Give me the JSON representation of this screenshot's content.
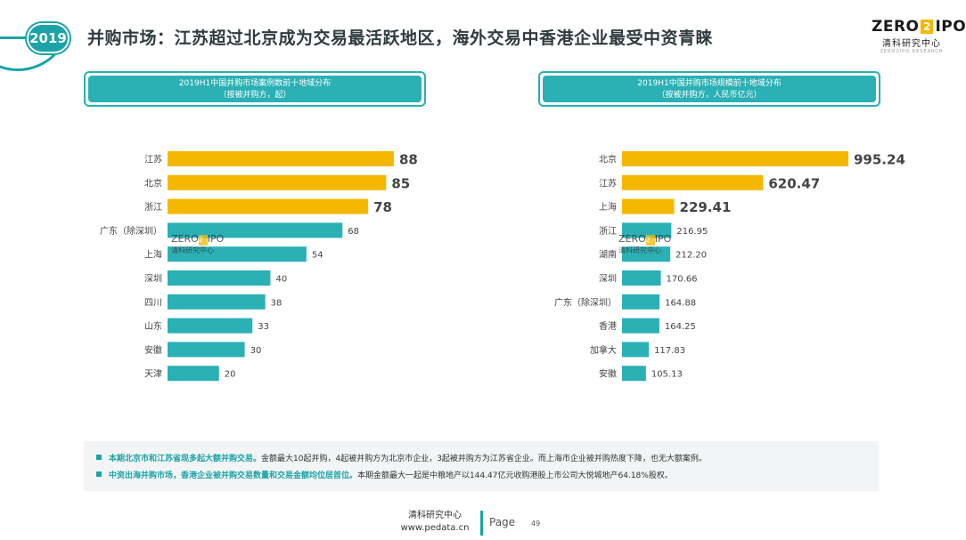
{
  "header": {
    "year": "2019",
    "title": "并购市场：江苏超过北京成为交易最活跃地区，海外交易中香港企业最受中资青睐"
  },
  "logo": {
    "main_left": "ZERO",
    "mark": "2",
    "main_right": "IPO",
    "sub": "清科研究中心",
    "tiny": "ZERO2IPO RESEARCH"
  },
  "watermark": {
    "main_left": "ZERO",
    "mark": "2",
    "main_right": "IPO",
    "sub": "清科研究中心"
  },
  "panels": {
    "left": {
      "title": "2019H1中国并购市场案例数前十地域分布",
      "subtitle": "（按被并购方，起）"
    },
    "right": {
      "title": "2019H1中国并购市场规模前十地域分布",
      "subtitle": "（按被并购方，人民币亿元）"
    }
  },
  "chart_data": [
    {
      "type": "bar",
      "orientation": "horizontal",
      "title": "2019H1中国并购市场案例数前十地域分布",
      "subtitle": "（按被并购方，起）",
      "categories": [
        "江苏",
        "北京",
        "浙江",
        "广东（除深圳）",
        "上海",
        "深圳",
        "四川",
        "山东",
        "安徽",
        "天津"
      ],
      "values": [
        88,
        85,
        78,
        68,
        54,
        40,
        38,
        33,
        30,
        20
      ],
      "value_labels": [
        "88",
        "85",
        "78",
        "68",
        "54",
        "40",
        "38",
        "33",
        "30",
        "20"
      ],
      "highlight_top": 3,
      "colors": {
        "highlight": "#f5b800",
        "normal": "#2ab0b5"
      },
      "xlim": [
        0,
        88
      ]
    },
    {
      "type": "bar",
      "orientation": "horizontal",
      "title": "2019H1中国并购市场规模前十地域分布",
      "subtitle": "（按被并购方，人民币亿元）",
      "categories": [
        "北京",
        "江苏",
        "上海",
        "浙江",
        "湖南",
        "深圳",
        "广东（除深圳）",
        "香港",
        "加拿大",
        "安徽"
      ],
      "values": [
        995.24,
        620.47,
        229.41,
        216.95,
        212.2,
        170.66,
        164.88,
        164.25,
        117.83,
        105.13
      ],
      "value_labels": [
        "995.24",
        "620.47",
        "229.41",
        "216.95",
        "212.20",
        "170.66",
        "164.88",
        "164.25",
        "117.83",
        "105.13"
      ],
      "highlight_top": 3,
      "colors": {
        "highlight": "#f5b800",
        "normal": "#2ab0b5"
      },
      "xlim": [
        0,
        995.24
      ]
    }
  ],
  "notes": [
    {
      "highlight": "本期北京市和江苏省现多起大额并购交易。",
      "text": "金额最大10起并购，4起被并购方为北京市企业，3起被并购方为江苏省企业。而上海市企业被并购热度下降，也无大额案例。"
    },
    {
      "highlight": "中资出海并购市场，香港企业被并购交易数量和交易金额均位居首位。",
      "text": "本期金额最大一起是中粮地产以144.47亿元收购港股上市公司大悦城地产64.18%股权。"
    }
  ],
  "footer": {
    "name": "清科研究中心",
    "url": "www.pedata.cn",
    "page_label": "Page",
    "page_number": "49"
  }
}
